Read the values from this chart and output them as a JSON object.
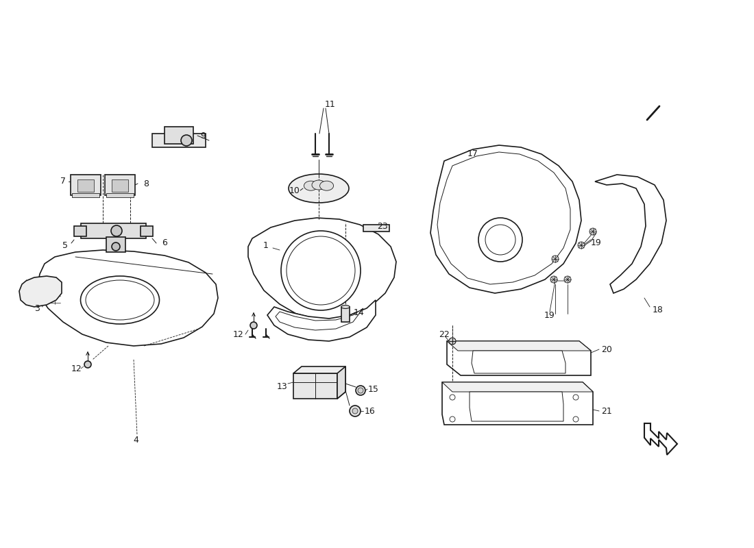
{
  "bg_color": "#ffffff",
  "line_color": "#1a1a1a",
  "figsize": [
    11.0,
    8.0
  ],
  "dpi": 100,
  "lw": 1.2
}
